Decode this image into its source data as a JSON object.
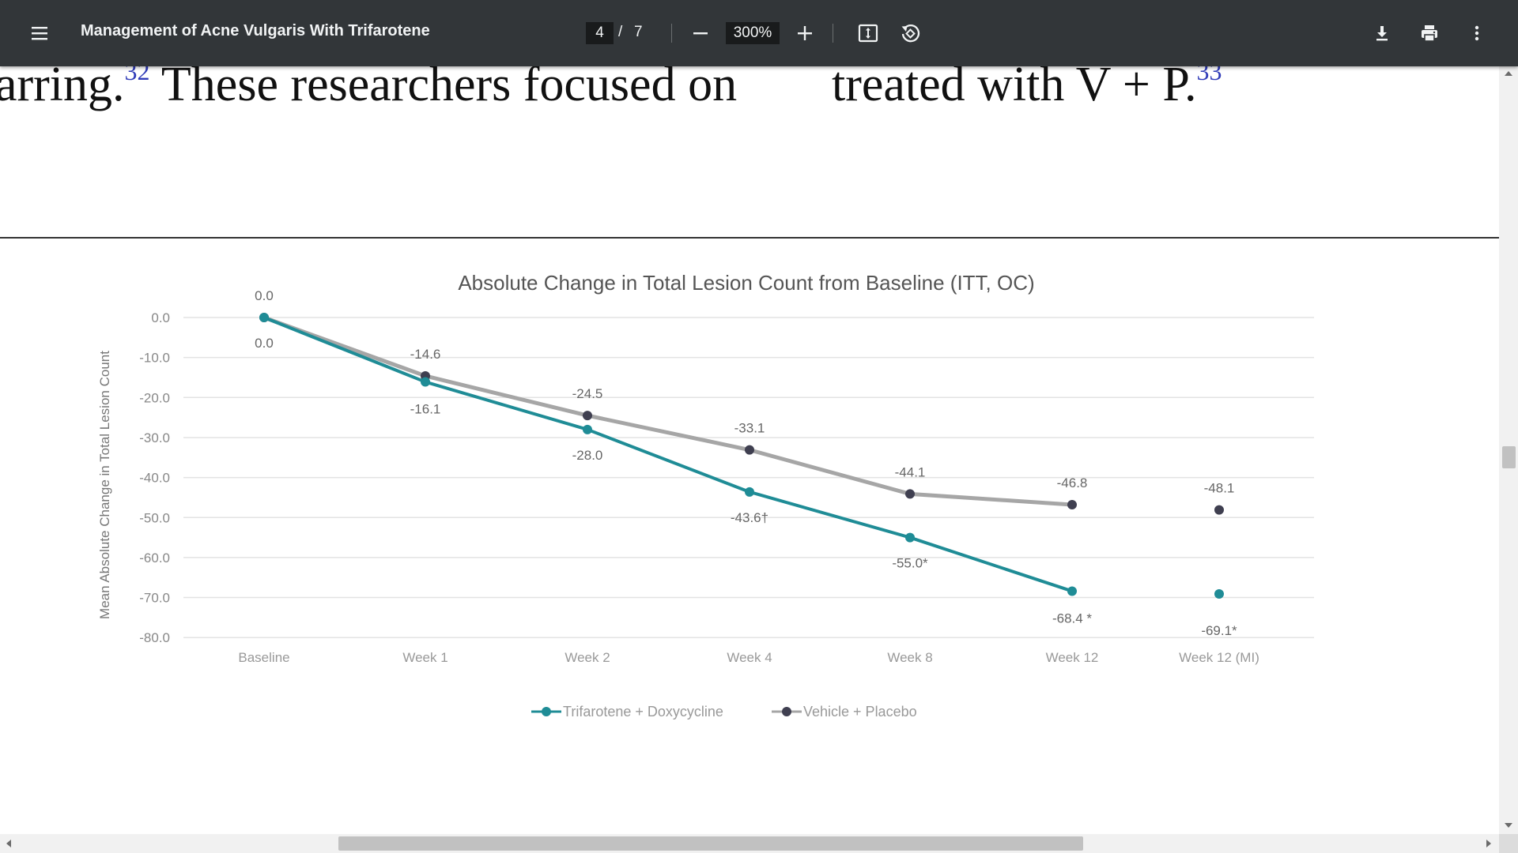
{
  "toolbar": {
    "title": "Management of Acne Vulgaris With Trifarotene",
    "page_current": "4",
    "page_separator": "/",
    "page_total": "7",
    "zoom": "300%",
    "icons": [
      "menu-icon",
      "zoom-out-icon",
      "zoom-in-icon",
      "fit-page-icon",
      "rotate-icon",
      "download-icon",
      "print-icon",
      "more-vert-icon"
    ]
  },
  "document": {
    "left_column_text": "arring.",
    "left_column_ref": "32",
    "left_column_text2": " These researchers focused on",
    "right_column_text": "treated with V + P.",
    "right_column_ref": "33"
  },
  "chart_data": {
    "type": "line",
    "title": "Absolute Change in Total Lesion Count from Baseline (ITT, OC)",
    "ylabel": "Mean Absolute Change in Total Lesion Count",
    "xlabel": "",
    "ylim": [
      -80,
      0
    ],
    "yticks": [
      "0.0",
      "-10.0",
      "-20.0",
      "-30.0",
      "-40.0",
      "-50.0",
      "-60.0",
      "-70.0",
      "-80.0"
    ],
    "categories": [
      "Baseline",
      "Week 1",
      "Week 2",
      "Week 4",
      "Week 8",
      "Week 12",
      "Week 12 (MI)"
    ],
    "grid": true,
    "legend_position": "bottom",
    "series": [
      {
        "name": "Trifarotene + Doxycycline",
        "color": "#1f8c96",
        "values": [
          0.0,
          -16.1,
          -28.0,
          -43.6,
          -55.0,
          -68.4,
          -69.1
        ],
        "labels": [
          "0.0",
          "-16.1",
          "-28.0",
          "-43.6†",
          "-55.0*",
          "-68.4 *",
          "-69.1*"
        ],
        "connected_points": 6
      },
      {
        "name": "Vehicle + Placebo",
        "color": "#a6a6a6",
        "marker_color": "#3f3f50",
        "values": [
          0.0,
          -14.6,
          -24.5,
          -33.1,
          -44.1,
          -46.8,
          -48.1
        ],
        "labels": [
          "0.0",
          "-14.6",
          "-24.5",
          "-33.1",
          "-44.1",
          "-46.8",
          "-48.1"
        ],
        "connected_points": 6
      }
    ]
  }
}
